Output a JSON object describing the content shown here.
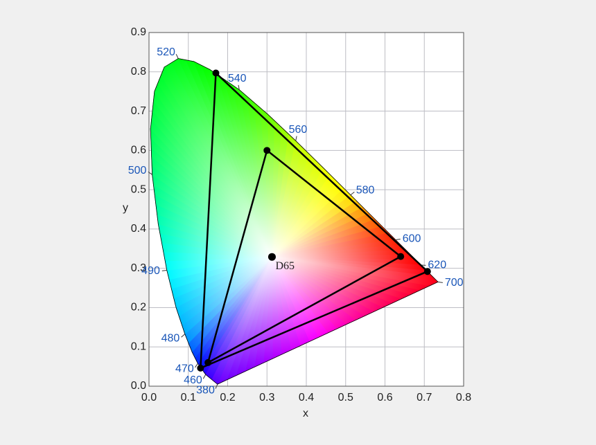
{
  "chart_data": {
    "type": "chromaticity",
    "xlabel": "x",
    "ylabel": "y",
    "xlim": [
      0,
      0.8
    ],
    "ylim": [
      0,
      0.9
    ],
    "xticks": [
      {
        "value": 0,
        "label": "0.0"
      },
      0.1,
      0.2,
      0.3,
      0.4,
      0.5,
      0.6,
      0.7,
      0.8
    ],
    "yticks": [
      {
        "value": 0,
        "label": "0.0"
      },
      0.1,
      0.2,
      0.3,
      0.4,
      0.5,
      0.6,
      0.7,
      0.8,
      0.9
    ],
    "grid": true,
    "locus_label_color": "#1a56b8",
    "locus": {
      "x": [
        0.144,
        0.1241,
        0.1096,
        0.0913,
        0.0687,
        0.0454,
        0.0235,
        0.0082,
        0.0039,
        0.0139,
        0.0389,
        0.0743,
        0.1142,
        0.1547,
        0.2296,
        0.3016,
        0.3731,
        0.4441,
        0.5125,
        0.5752,
        0.627,
        0.6658,
        0.6915,
        0.7347,
        0.1741
      ],
      "y": [
        0.0297,
        0.0578,
        0.0868,
        0.1327,
        0.2007,
        0.295,
        0.4127,
        0.5384,
        0.6548,
        0.7502,
        0.812,
        0.8338,
        0.8262,
        0.8059,
        0.7543,
        0.6923,
        0.6245,
        0.5547,
        0.4866,
        0.4242,
        0.3725,
        0.334,
        0.3083,
        0.2653,
        0.005
      ],
      "labels": [
        "460",
        "470",
        null,
        "480",
        null,
        "490",
        null,
        "500",
        null,
        null,
        null,
        "520",
        null,
        null,
        "540",
        null,
        "560",
        null,
        "580",
        null,
        "600",
        null,
        "620",
        "700",
        "380"
      ]
    },
    "gamuts": [
      {
        "x": [
          0.708,
          0.17,
          0.131
        ],
        "y": [
          0.292,
          0.797,
          0.046
        ],
        "color": "#000000"
      },
      {
        "x": [
          0.64,
          0.3,
          0.15
        ],
        "y": [
          0.33,
          0.6,
          0.06
        ],
        "color": "#000000"
      }
    ],
    "white_point": {
      "name": "D65",
      "x": 0.3127,
      "y": 0.329
    }
  }
}
